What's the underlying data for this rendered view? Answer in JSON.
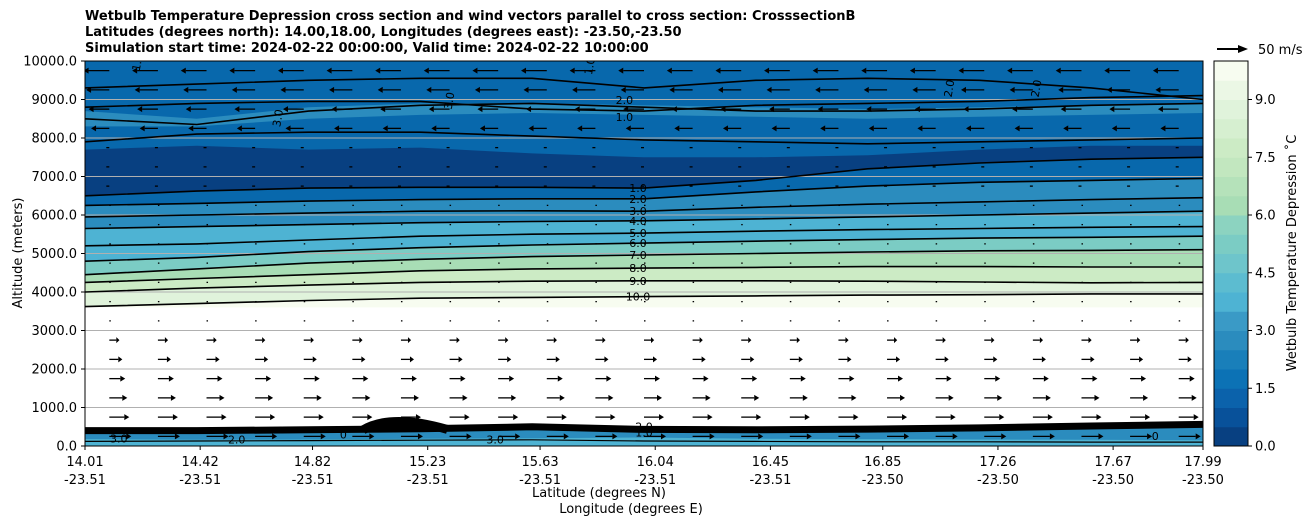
{
  "chart_data": {
    "type": "contour",
    "title": [
      "Wetbulb Temperature Depression cross section and wind vectors parallel to cross section: CrosssectionB",
      "Latitudes (degrees north): 14.00,18.00, Longitudes (degrees east): -23.50,-23.50",
      "Simulation start time: 2024-02-22 00:00:00, Valid time: 2024-02-22 10:00:00"
    ],
    "ylabel": "Altitude (meters)",
    "xlabel_lat": "Latitude (degrees N)",
    "xlabel_lon": "Longitude (degrees E)",
    "ylim": [
      0,
      10000
    ],
    "yticks": [
      "0.0",
      "1000.0",
      "2000.0",
      "3000.0",
      "4000.0",
      "5000.0",
      "6000.0",
      "7000.0",
      "8000.0",
      "9000.0",
      "10000.0"
    ],
    "xlim": [
      14.01,
      17.99
    ],
    "xticks": [
      {
        "lat": "14.01",
        "lon": "-23.51"
      },
      {
        "lat": "14.42",
        "lon": "-23.51"
      },
      {
        "lat": "14.82",
        "lon": "-23.51"
      },
      {
        "lat": "15.23",
        "lon": "-23.51"
      },
      {
        "lat": "15.63",
        "lon": "-23.51"
      },
      {
        "lat": "16.04",
        "lon": "-23.51"
      },
      {
        "lat": "16.45",
        "lon": "-23.51"
      },
      {
        "lat": "16.85",
        "lon": "-23.50"
      },
      {
        "lat": "17.26",
        "lon": "-23.50"
      },
      {
        "lat": "17.67",
        "lon": "-23.50"
      },
      {
        "lat": "17.99",
        "lon": "-23.50"
      }
    ],
    "colorbar": {
      "label": "Wetbulb Temperature Depression ˚C",
      "range": [
        0,
        10
      ],
      "ticks": [
        "0.0",
        "1.5",
        "3.0",
        "4.5",
        "6.0",
        "7.5",
        "9.0"
      ]
    },
    "quiver_key": {
      "label": "50 m/s",
      "speed": 50
    },
    "contour_labels": [
      "1.0",
      "2.0",
      "3.0",
      "4.0",
      "5.0",
      "6.0",
      "7.0",
      "8.0",
      "9.0",
      "10.0"
    ],
    "upper_labels": {
      "one": "1.0",
      "two": "2.0",
      "three": "3.0"
    },
    "surface_labels": [
      "3.0",
      "2.0",
      "1.0",
      "0",
      "3.0",
      "2.0",
      "1.0"
    ],
    "iso_levels": [
      {
        "level": "1.0",
        "alts": [
          6500,
          6620,
          6700,
          6720,
          6720,
          6700,
          6900,
          7200,
          7350,
          7450,
          7500
        ]
      },
      {
        "level": "2.0",
        "alts": [
          6250,
          6300,
          6360,
          6400,
          6420,
          6420,
          6600,
          6750,
          6850,
          6900,
          6950
        ]
      },
      {
        "level": "3.0",
        "alts": [
          5950,
          6000,
          6050,
          6100,
          6110,
          6100,
          6200,
          6280,
          6340,
          6400,
          6450
        ]
      },
      {
        "level": "4.0",
        "alts": [
          5650,
          5700,
          5750,
          5800,
          5830,
          5850,
          5900,
          5950,
          6000,
          6050,
          6100
        ]
      },
      {
        "level": "5.0",
        "alts": [
          5200,
          5250,
          5350,
          5450,
          5500,
          5530,
          5580,
          5620,
          5650,
          5680,
          5700
        ]
      },
      {
        "level": "6.0",
        "alts": [
          4800,
          4900,
          5050,
          5150,
          5220,
          5270,
          5320,
          5360,
          5400,
          5420,
          5450
        ]
      },
      {
        "level": "7.0",
        "alts": [
          4450,
          4600,
          4750,
          4850,
          4920,
          4960,
          5000,
          5040,
          5070,
          5080,
          5100
        ]
      },
      {
        "level": "8.0",
        "alts": [
          4250,
          4350,
          4450,
          4550,
          4600,
          4620,
          4640,
          4660,
          4660,
          4650,
          4650
        ]
      },
      {
        "level": "9.0",
        "alts": [
          4000,
          4100,
          4180,
          4250,
          4280,
          4290,
          4290,
          4280,
          4260,
          4240,
          4250
        ]
      },
      {
        "level": "10.0",
        "alts": [
          3620,
          3700,
          3780,
          3840,
          3860,
          3880,
          3900,
          3920,
          3930,
          3950,
          3950
        ]
      }
    ],
    "upper_levels": [
      {
        "level": "1.0",
        "alts": [
          9300,
          9400,
          9500,
          9550,
          9550,
          9300,
          9500,
          9550,
          9500,
          9300,
          9000
        ]
      },
      {
        "level": "2.0",
        "alts": [
          8800,
          8900,
          8950,
          8950,
          8750,
          8700,
          8850,
          8900,
          8950,
          9050,
          9100
        ]
      },
      {
        "level": "1.0",
        "alts": [
          7900,
          8100,
          8150,
          8150,
          8050,
          7950,
          7900,
          7850,
          7900,
          7950,
          8000
        ]
      },
      {
        "level": "3.0",
        "alts": [
          8500,
          8350,
          8700,
          8850,
          8900,
          8800,
          8700,
          8700,
          8750,
          8850,
          8900
        ]
      }
    ]
  },
  "colors": {
    "cmap": [
      "#f7fcf0",
      "#e0f3db",
      "#ccebc5",
      "#a8ddb5",
      "#7bccc4",
      "#4eb3d3",
      "#2b8cbe",
      "#0868ac",
      "#084081"
    ],
    "grid": "#b0b0b0"
  }
}
